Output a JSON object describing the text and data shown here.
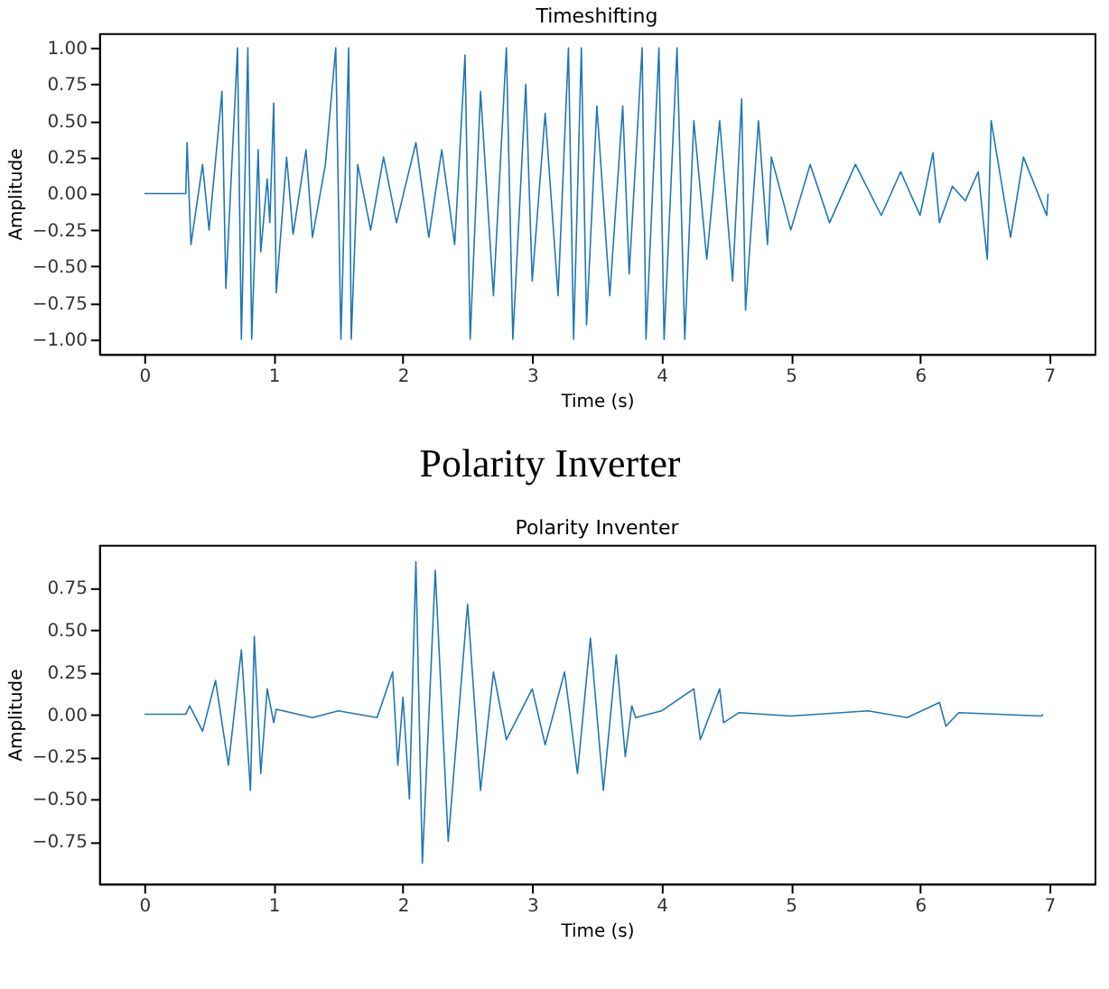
{
  "chart_data": [
    {
      "type": "line",
      "title": "Timeshifting",
      "xlabel": "Time (s)",
      "ylabel": "Amplitude",
      "xlim": [
        -0.35,
        7.35
      ],
      "ylim": [
        -1.1,
        1.1
      ],
      "xticks": [
        0,
        1,
        2,
        3,
        4,
        5,
        6,
        7
      ],
      "yticks": [
        {
          "value": -1,
          "label": "−1.00"
        },
        {
          "value": -0.75,
          "label": "−0.75"
        },
        {
          "value": -0.5,
          "label": "−0.50"
        },
        {
          "value": -0.25,
          "label": "−0.25"
        },
        {
          "value": 0,
          "label": "0.00"
        },
        {
          "value": 0.25,
          "label": "0.25"
        },
        {
          "value": 0.5,
          "label": "0.50"
        },
        {
          "value": 0.75,
          "label": "0.75"
        },
        {
          "value": 1,
          "label": "1.00"
        }
      ],
      "grid": false,
      "x": [
        0,
        0.32,
        0.33,
        0.36,
        0.45,
        0.5,
        0.6,
        0.63,
        0.72,
        0.75,
        0.8,
        0.83,
        0.88,
        0.9,
        0.95,
        0.97,
        1.0,
        1.02,
        1.1,
        1.15,
        1.25,
        1.3,
        1.4,
        1.48,
        1.52,
        1.58,
        1.6,
        1.65,
        1.75,
        1.85,
        1.95,
        2.1,
        2.2,
        2.3,
        2.4,
        2.48,
        2.52,
        2.6,
        2.7,
        2.8,
        2.85,
        2.95,
        3.0,
        3.1,
        3.2,
        3.28,
        3.32,
        3.38,
        3.42,
        3.5,
        3.6,
        3.7,
        3.75,
        3.85,
        3.88,
        3.98,
        4.02,
        4.12,
        4.18,
        4.25,
        4.35,
        4.45,
        4.55,
        4.62,
        4.65,
        4.75,
        4.82,
        4.85,
        5.0,
        5.15,
        5.3,
        5.5,
        5.7,
        5.85,
        6.0,
        6.1,
        6.15,
        6.25,
        6.35,
        6.45,
        6.52,
        6.55,
        6.7,
        6.8,
        6.98,
        6.99
      ],
      "series": [
        {
          "color": "#1f77b4",
          "values": [
            0,
            0,
            0.35,
            -0.35,
            0.2,
            -0.25,
            0.7,
            -0.65,
            1.0,
            -1.0,
            1.0,
            -1.0,
            0.3,
            -0.4,
            0.1,
            -0.2,
            0.62,
            -0.68,
            0.25,
            -0.28,
            0.3,
            -0.3,
            0.2,
            1.0,
            -1.0,
            1.0,
            -1.0,
            0.2,
            -0.25,
            0.25,
            -0.2,
            0.35,
            -0.3,
            0.3,
            -0.35,
            0.95,
            -1.0,
            0.7,
            -0.7,
            1.0,
            -1.0,
            0.75,
            -0.6,
            0.55,
            -0.7,
            1.0,
            -1.0,
            1.0,
            -0.9,
            0.6,
            -0.7,
            0.6,
            -0.55,
            1.0,
            -1.0,
            1.0,
            -1.0,
            1.0,
            -1.0,
            0.5,
            -0.45,
            0.5,
            -0.6,
            0.65,
            -0.8,
            0.5,
            -0.35,
            0.25,
            -0.25,
            0.2,
            -0.2,
            0.2,
            -0.15,
            0.15,
            -0.15,
            0.28,
            -0.2,
            0.05,
            -0.05,
            0.15,
            -0.45,
            0.5,
            -0.3,
            0.25,
            -0.15,
            0
          ]
        }
      ]
    },
    {
      "type": "line",
      "title": "Polarity Inventer",
      "annotations": [
        "Polarity Inverter"
      ],
      "xlabel": "Time (s)",
      "ylabel": "Amplitude",
      "xlim": [
        -0.35,
        7.35
      ],
      "ylim": [
        -1.0,
        1.0
      ],
      "xticks": [
        0,
        1,
        2,
        3,
        4,
        5,
        6,
        7
      ],
      "yticks": [
        {
          "value": -0.75,
          "label": "−0.75"
        },
        {
          "value": -0.5,
          "label": "−0.50"
        },
        {
          "value": -0.25,
          "label": "−0.25"
        },
        {
          "value": 0,
          "label": "0.00"
        },
        {
          "value": 0.25,
          "label": "0.25"
        },
        {
          "value": 0.5,
          "label": "0.50"
        },
        {
          "value": 0.75,
          "label": "0.75"
        }
      ],
      "grid": false,
      "x": [
        0,
        0.32,
        0.35,
        0.45,
        0.55,
        0.65,
        0.75,
        0.82,
        0.85,
        0.9,
        0.95,
        1.0,
        1.02,
        1.3,
        1.5,
        1.8,
        1.92,
        1.96,
        2.0,
        2.05,
        2.1,
        2.15,
        2.25,
        2.35,
        2.5,
        2.6,
        2.7,
        2.8,
        3.0,
        3.1,
        3.25,
        3.35,
        3.45,
        3.55,
        3.65,
        3.72,
        3.77,
        3.8,
        4.0,
        4.25,
        4.3,
        4.45,
        4.48,
        4.6,
        5.0,
        5.6,
        5.9,
        6.15,
        6.2,
        6.3,
        6.94,
        6.95
      ],
      "series": [
        {
          "color": "#1f77b4",
          "values": [
            0,
            0,
            0.05,
            -0.1,
            0.2,
            -0.3,
            0.38,
            -0.45,
            0.46,
            -0.35,
            0.15,
            -0.05,
            0.03,
            -0.02,
            0.02,
            -0.02,
            0.25,
            -0.3,
            0.1,
            -0.5,
            0.9,
            -0.88,
            0.85,
            -0.75,
            0.65,
            -0.45,
            0.25,
            -0.15,
            0.15,
            -0.18,
            0.25,
            -0.35,
            0.45,
            -0.45,
            0.35,
            -0.25,
            0.05,
            -0.02,
            0.02,
            0.15,
            -0.15,
            0.15,
            -0.05,
            0.01,
            -0.01,
            0.02,
            -0.02,
            0.07,
            -0.07,
            0.01,
            -0.01,
            0
          ]
        }
      ]
    }
  ]
}
